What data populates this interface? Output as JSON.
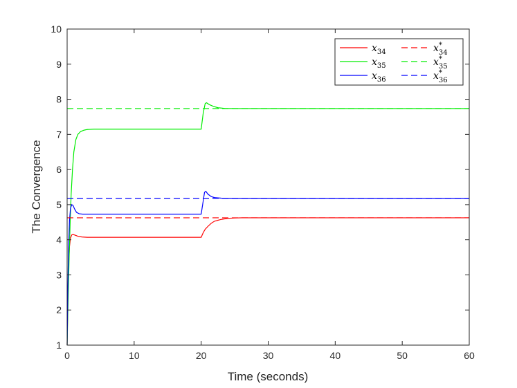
{
  "chart_data": {
    "type": "line",
    "title": "",
    "xlabel": "Time (seconds)",
    "ylabel": "The Convergence",
    "xlim": [
      0,
      60
    ],
    "ylim": [
      1,
      10
    ],
    "xticks": [
      0,
      10,
      20,
      30,
      40,
      50,
      60
    ],
    "yticks": [
      1,
      2,
      3,
      4,
      5,
      6,
      7,
      8,
      9,
      10
    ],
    "grid": false,
    "legend_position": "top-right",
    "series": [
      {
        "name": "x34",
        "sym": "x",
        "sub": "34",
        "star": false,
        "color": "#ff0000",
        "style": "solid",
        "x": [
          0,
          0.1,
          0.2,
          0.35,
          0.5,
          0.7,
          0.9,
          1.2,
          1.6,
          2.2,
          3,
          5,
          10,
          15,
          20,
          20.3,
          20.6,
          21,
          21.5,
          22,
          23,
          24,
          25,
          26,
          30,
          40,
          50,
          60
        ],
        "y": [
          1.0,
          2.2,
          3.2,
          3.8,
          4.05,
          4.14,
          4.15,
          4.13,
          4.1,
          4.08,
          4.07,
          4.07,
          4.07,
          4.07,
          4.07,
          4.2,
          4.3,
          4.38,
          4.47,
          4.53,
          4.58,
          4.61,
          4.62,
          4.625,
          4.625,
          4.625,
          4.625,
          4.625
        ]
      },
      {
        "name": "x35",
        "sym": "x",
        "sub": "35",
        "star": false,
        "color": "#00ee00",
        "style": "solid",
        "x": [
          0,
          0.1,
          0.2,
          0.3,
          0.45,
          0.6,
          0.8,
          1.0,
          1.3,
          1.6,
          2.0,
          2.5,
          3,
          4,
          6,
          10,
          15,
          20,
          20.3,
          20.6,
          20.8,
          21.2,
          21.8,
          22.5,
          23.5,
          25,
          30,
          40,
          50,
          60
        ],
        "y": [
          1.0,
          1.9,
          2.7,
          3.5,
          4.5,
          5.3,
          6.0,
          6.5,
          6.85,
          7.0,
          7.08,
          7.12,
          7.14,
          7.15,
          7.15,
          7.15,
          7.15,
          7.15,
          7.6,
          7.88,
          7.9,
          7.85,
          7.8,
          7.76,
          7.74,
          7.735,
          7.735,
          7.735,
          7.735,
          7.735
        ]
      },
      {
        "name": "x36",
        "sym": "x",
        "sub": "36",
        "star": false,
        "color": "#0000ff",
        "style": "solid",
        "x": [
          0,
          0.1,
          0.2,
          0.35,
          0.5,
          0.7,
          0.9,
          1.1,
          1.4,
          1.8,
          2.3,
          3,
          5,
          10,
          15,
          20,
          20.3,
          20.5,
          20.7,
          21,
          21.5,
          22,
          23,
          25,
          30,
          40,
          50,
          60
        ],
        "y": [
          1.0,
          2.5,
          3.7,
          4.55,
          4.9,
          5.0,
          4.97,
          4.88,
          4.78,
          4.74,
          4.73,
          4.73,
          4.73,
          4.73,
          4.73,
          4.73,
          5.1,
          5.35,
          5.38,
          5.3,
          5.23,
          5.2,
          5.185,
          5.18,
          5.18,
          5.18,
          5.18,
          5.18
        ]
      },
      {
        "name": "x34*",
        "sym": "x",
        "sub": "34",
        "star": true,
        "color": "#ff0000",
        "style": "dashed",
        "x": [
          0,
          60
        ],
        "y": [
          4.625,
          4.625
        ]
      },
      {
        "name": "x35*",
        "sym": "x",
        "sub": "35",
        "star": true,
        "color": "#00ee00",
        "style": "dashed",
        "x": [
          0,
          60
        ],
        "y": [
          7.735,
          7.735
        ]
      },
      {
        "name": "x36*",
        "sym": "x",
        "sub": "36",
        "star": true,
        "color": "#0000ff",
        "style": "dashed",
        "x": [
          0,
          60
        ],
        "y": [
          5.18,
          5.18
        ]
      }
    ]
  }
}
